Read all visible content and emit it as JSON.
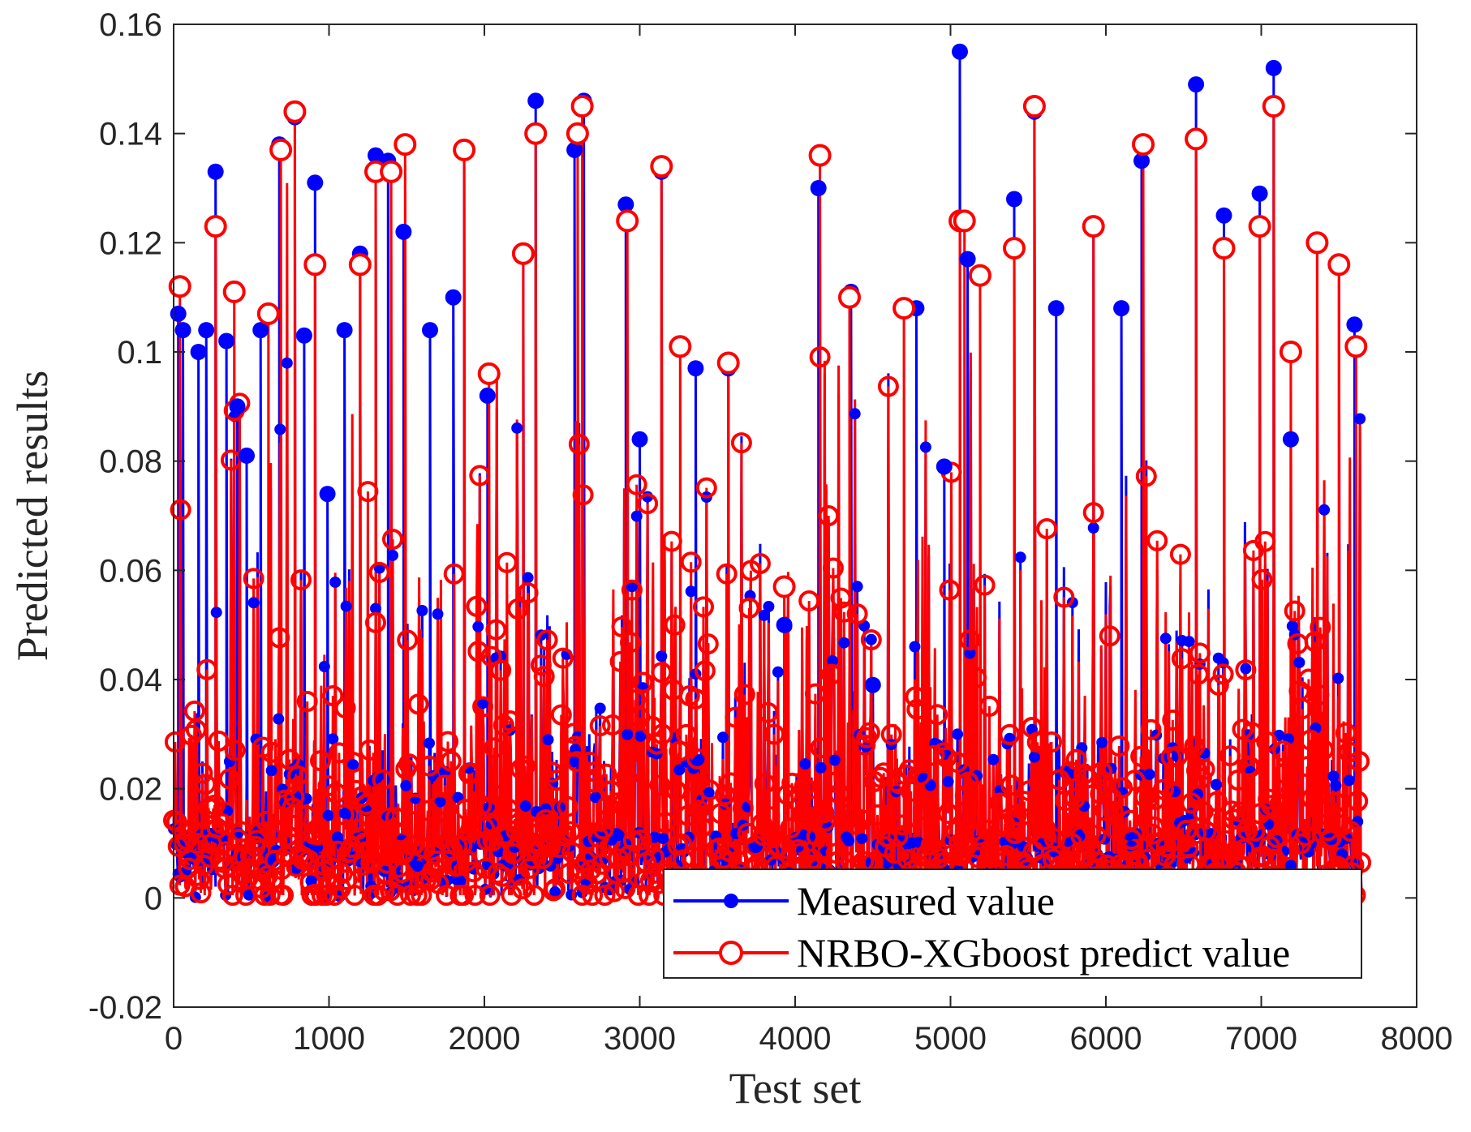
{
  "colors": {
    "measured": "#0000ff",
    "predicted": "#ff0000",
    "axis": "#262626",
    "background": "#ffffff"
  },
  "chart_data": {
    "type": "line",
    "title": "",
    "xlabel": "Test set",
    "ylabel": "Predicted results",
    "xlim": [
      0,
      8000
    ],
    "ylim": [
      -0.02,
      0.16
    ],
    "xticks": [
      0,
      1000,
      2000,
      3000,
      4000,
      5000,
      6000,
      7000,
      8000
    ],
    "xtick_labels": [
      "0",
      "1000",
      "2000",
      "3000",
      "4000",
      "5000",
      "6000",
      "7000",
      "8000"
    ],
    "yticks": [
      -0.02,
      0,
      0.02,
      0.04,
      0.06,
      0.08,
      0.1,
      0.12,
      0.14,
      0.16
    ],
    "ytick_labels": [
      "-0.02",
      "0",
      "0.02",
      "0.04",
      "0.06",
      "0.08",
      "0.1",
      "0.12",
      "0.14",
      "0.16"
    ],
    "grid": false,
    "legend_position": "bottom-right",
    "n_samples": 7650,
    "series": [
      {
        "name": "Measured value",
        "marker": "filled-circle",
        "color": "#0000ff",
        "notable_points": [
          {
            "x": 30,
            "y": 0.107
          },
          {
            "x": 60,
            "y": 0.104
          },
          {
            "x": 160,
            "y": 0.1
          },
          {
            "x": 210,
            "y": 0.104
          },
          {
            "x": 270,
            "y": 0.133
          },
          {
            "x": 340,
            "y": 0.102
          },
          {
            "x": 410,
            "y": 0.09
          },
          {
            "x": 470,
            "y": 0.081
          },
          {
            "x": 560,
            "y": 0.104
          },
          {
            "x": 680,
            "y": 0.138
          },
          {
            "x": 780,
            "y": 0.143
          },
          {
            "x": 840,
            "y": 0.103
          },
          {
            "x": 910,
            "y": 0.131
          },
          {
            "x": 990,
            "y": 0.074
          },
          {
            "x": 1100,
            "y": 0.104
          },
          {
            "x": 1200,
            "y": 0.118
          },
          {
            "x": 1300,
            "y": 0.136
          },
          {
            "x": 1380,
            "y": 0.135
          },
          {
            "x": 1480,
            "y": 0.122
          },
          {
            "x": 1650,
            "y": 0.104
          },
          {
            "x": 1800,
            "y": 0.11
          },
          {
            "x": 1870,
            "y": 0.137
          },
          {
            "x": 2020,
            "y": 0.092
          },
          {
            "x": 2250,
            "y": 0.118
          },
          {
            "x": 2330,
            "y": 0.146
          },
          {
            "x": 2580,
            "y": 0.137
          },
          {
            "x": 2640,
            "y": 0.146
          },
          {
            "x": 2910,
            "y": 0.127
          },
          {
            "x": 3000,
            "y": 0.084
          },
          {
            "x": 3140,
            "y": 0.133
          },
          {
            "x": 3360,
            "y": 0.097
          },
          {
            "x": 3570,
            "y": 0.097
          },
          {
            "x": 3930,
            "y": 0.05
          },
          {
            "x": 4150,
            "y": 0.13
          },
          {
            "x": 4360,
            "y": 0.111
          },
          {
            "x": 4500,
            "y": 0.039
          },
          {
            "x": 4780,
            "y": 0.108
          },
          {
            "x": 4960,
            "y": 0.079
          },
          {
            "x": 5060,
            "y": 0.155
          },
          {
            "x": 5110,
            "y": 0.117
          },
          {
            "x": 5410,
            "y": 0.128
          },
          {
            "x": 5540,
            "y": 0.144
          },
          {
            "x": 5680,
            "y": 0.108
          },
          {
            "x": 5920,
            "y": 0.123
          },
          {
            "x": 6100,
            "y": 0.108
          },
          {
            "x": 6230,
            "y": 0.135
          },
          {
            "x": 6580,
            "y": 0.149
          },
          {
            "x": 6760,
            "y": 0.125
          },
          {
            "x": 6990,
            "y": 0.129
          },
          {
            "x": 7080,
            "y": 0.152
          },
          {
            "x": 7190,
            "y": 0.084
          },
          {
            "x": 7360,
            "y": 0.12
          },
          {
            "x": 7500,
            "y": 0.116
          },
          {
            "x": 7600,
            "y": 0.105
          }
        ]
      },
      {
        "name": "NRBO-XGboost predict value",
        "marker": "open-circle",
        "color": "#ff0000",
        "notable_points": [
          {
            "x": 40,
            "y": 0.112
          },
          {
            "x": 270,
            "y": 0.123
          },
          {
            "x": 390,
            "y": 0.111
          },
          {
            "x": 610,
            "y": 0.107
          },
          {
            "x": 690,
            "y": 0.137
          },
          {
            "x": 780,
            "y": 0.144
          },
          {
            "x": 910,
            "y": 0.116
          },
          {
            "x": 1200,
            "y": 0.116
          },
          {
            "x": 1300,
            "y": 0.133
          },
          {
            "x": 1400,
            "y": 0.133
          },
          {
            "x": 1490,
            "y": 0.138
          },
          {
            "x": 1870,
            "y": 0.137
          },
          {
            "x": 2030,
            "y": 0.096
          },
          {
            "x": 2250,
            "y": 0.118
          },
          {
            "x": 2330,
            "y": 0.14
          },
          {
            "x": 2600,
            "y": 0.14
          },
          {
            "x": 2630,
            "y": 0.145
          },
          {
            "x": 2920,
            "y": 0.124
          },
          {
            "x": 3140,
            "y": 0.134
          },
          {
            "x": 3260,
            "y": 0.101
          },
          {
            "x": 3570,
            "y": 0.098
          },
          {
            "x": 3930,
            "y": 0.057
          },
          {
            "x": 4160,
            "y": 0.136
          },
          {
            "x": 4350,
            "y": 0.11
          },
          {
            "x": 4700,
            "y": 0.108
          },
          {
            "x": 5060,
            "y": 0.124
          },
          {
            "x": 5090,
            "y": 0.124
          },
          {
            "x": 5190,
            "y": 0.114
          },
          {
            "x": 5410,
            "y": 0.119
          },
          {
            "x": 5540,
            "y": 0.145
          },
          {
            "x": 5920,
            "y": 0.123
          },
          {
            "x": 6240,
            "y": 0.138
          },
          {
            "x": 6580,
            "y": 0.139
          },
          {
            "x": 6760,
            "y": 0.119
          },
          {
            "x": 6990,
            "y": 0.123
          },
          {
            "x": 7080,
            "y": 0.145
          },
          {
            "x": 7190,
            "y": 0.1
          },
          {
            "x": 7360,
            "y": 0.12
          },
          {
            "x": 7500,
            "y": 0.116
          },
          {
            "x": 7610,
            "y": 0.101
          }
        ]
      }
    ]
  }
}
